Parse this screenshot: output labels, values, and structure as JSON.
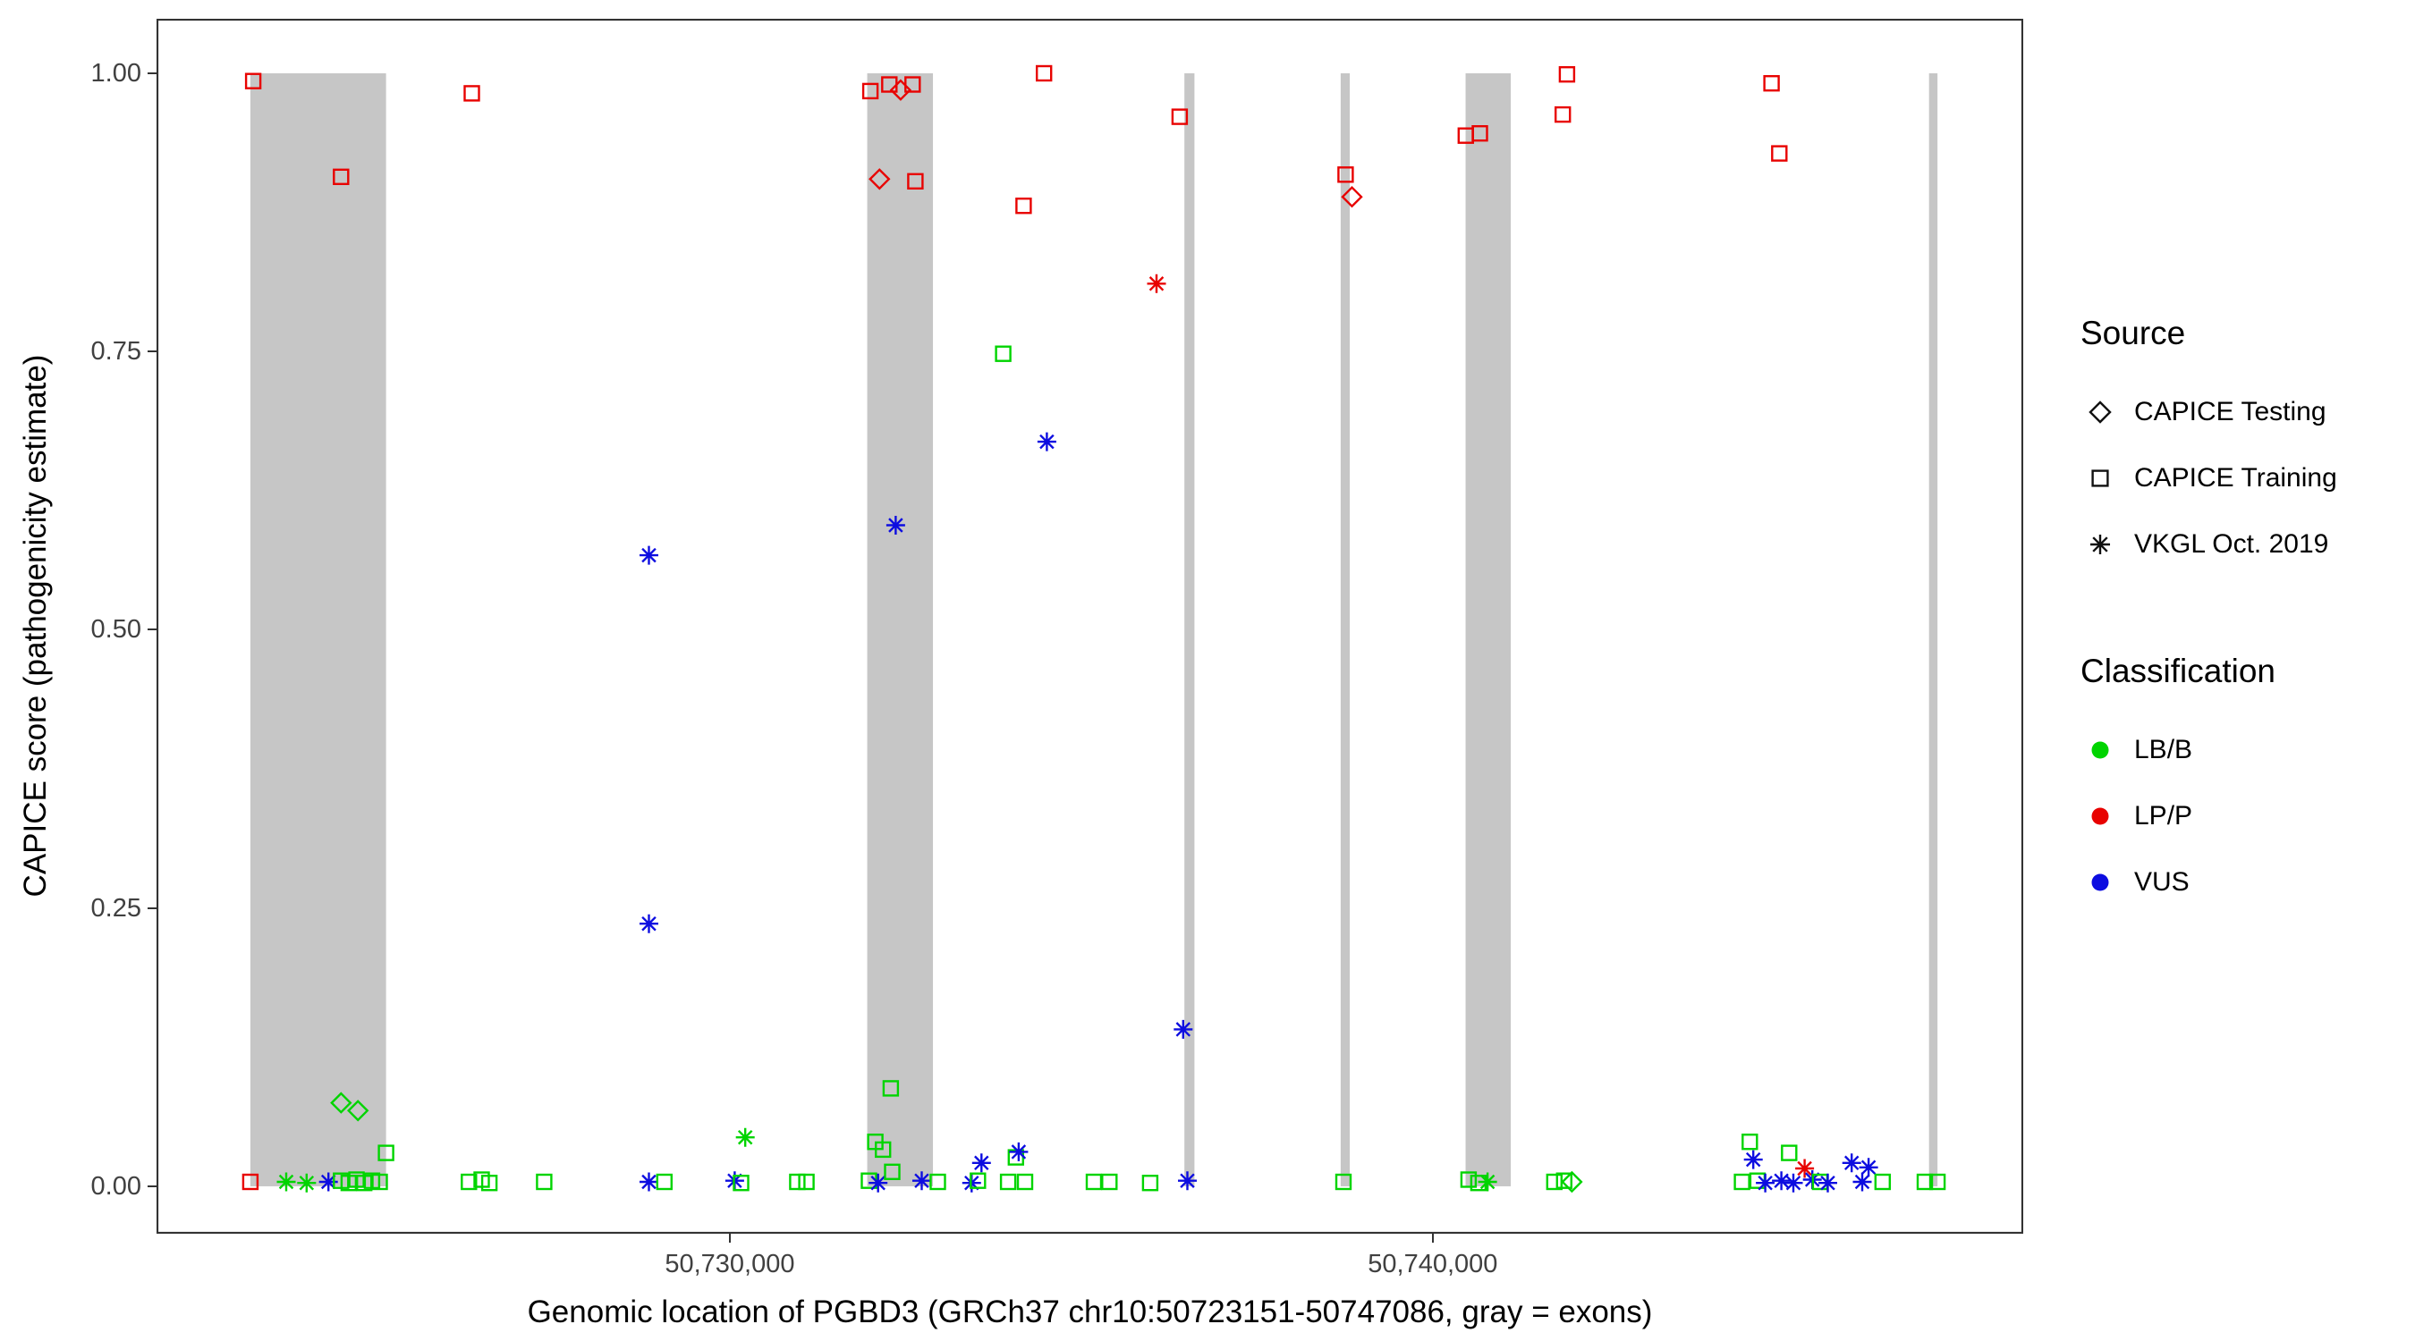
{
  "legend": {
    "source": {
      "title": "Source",
      "items": [
        {
          "label": "CAPICE Testing",
          "shape": "diamond"
        },
        {
          "label": "CAPICE Training",
          "shape": "square"
        },
        {
          "label": "VKGL Oct. 2019",
          "shape": "asterisk"
        }
      ]
    },
    "classification": {
      "title": "Classification",
      "items": [
        {
          "label": "LB/B",
          "color": "#00d400"
        },
        {
          "label": "LP/P",
          "color": "#e80200"
        },
        {
          "label": "VUS",
          "color": "#0d0de0"
        }
      ]
    }
  },
  "chart_data": {
    "type": "scatter",
    "title": "",
    "xlabel": "Genomic location of PGBD3 (GRCh37 chr10:50723151-50747086, gray = exons)",
    "ylabel": "CAPICE score (pathogenicity estimate)",
    "x_domain": [
      50721845,
      50748400
    ],
    "y_domain": [
      -0.0426,
      1.049
    ],
    "x_ticks": [
      {
        "value": 50730000,
        "label": "50,730,000"
      },
      {
        "value": 50740000,
        "label": "50,740,000"
      }
    ],
    "y_ticks": [
      {
        "value": 1.0,
        "label": "1.00"
      },
      {
        "value": 0.75,
        "label": "0.75"
      },
      {
        "value": 0.5,
        "label": "0.50"
      },
      {
        "value": 0.25,
        "label": "0.25"
      },
      {
        "value": 0.0,
        "label": "0.00"
      }
    ],
    "exon_color": "#c6c6c6",
    "exons": [
      [
        50723180,
        50725110
      ],
      [
        50731955,
        50732890
      ],
      [
        50736467,
        50736610
      ],
      [
        50738690,
        50738820
      ],
      [
        50740467,
        50741110
      ],
      [
        50747060,
        50747180
      ]
    ],
    "classification_codes": {
      "B": "LB/B",
      "P": "LP/P",
      "V": "VUS"
    },
    "source_codes": {
      "TE": "CAPICE Testing",
      "TR": "CAPICE Training",
      "VK": "VKGL Oct. 2019"
    },
    "class_colors": {
      "LB/B": "#00d400",
      "LP/P": "#e80200",
      "VUS": "#0d0de0"
    },
    "shape_map": {
      "CAPICE Testing": "diamond",
      "CAPICE Training": "square",
      "VKGL Oct. 2019": "asterisk"
    },
    "point_format": [
      "x_genomic",
      "capice_score",
      "classification_code",
      "source_code"
    ],
    "points": [
      [
        50723220,
        0.993,
        "P",
        "TR"
      ],
      [
        50724470,
        0.907,
        "P",
        "TR"
      ],
      [
        50726330,
        0.982,
        "P",
        "TR"
      ],
      [
        50732000,
        0.984,
        "P",
        "TR"
      ],
      [
        50732270,
        0.99,
        "P",
        "TR"
      ],
      [
        50732430,
        0.985,
        "P",
        "TE"
      ],
      [
        50732600,
        0.99,
        "P",
        "TR"
      ],
      [
        50732130,
        0.905,
        "P",
        "TE"
      ],
      [
        50732640,
        0.903,
        "P",
        "TR"
      ],
      [
        50734180,
        0.881,
        "P",
        "TR"
      ],
      [
        50734470,
        1.0,
        "P",
        "TR"
      ],
      [
        50736400,
        0.961,
        "P",
        "TR"
      ],
      [
        50736070,
        0.811,
        "P",
        "VK"
      ],
      [
        50738760,
        0.909,
        "P",
        "TR"
      ],
      [
        50738850,
        0.889,
        "P",
        "TE"
      ],
      [
        50740470,
        0.944,
        "P",
        "TR"
      ],
      [
        50740670,
        0.946,
        "P",
        "TR"
      ],
      [
        50741850,
        0.963,
        "P",
        "TR"
      ],
      [
        50741910,
        0.999,
        "P",
        "TR"
      ],
      [
        50744820,
        0.991,
        "P",
        "TR"
      ],
      [
        50744930,
        0.928,
        "P",
        "TR"
      ],
      [
        50733890,
        0.748,
        "B",
        "TR"
      ],
      [
        50734510,
        0.669,
        "V",
        "VK"
      ],
      [
        50732360,
        0.594,
        "V",
        "VK"
      ],
      [
        50728850,
        0.567,
        "V",
        "VK"
      ],
      [
        50728850,
        0.236,
        "V",
        "VK"
      ],
      [
        50736450,
        0.141,
        "V",
        "VK"
      ],
      [
        50724470,
        0.075,
        "B",
        "TE"
      ],
      [
        50724710,
        0.068,
        "B",
        "TE"
      ],
      [
        50732290,
        0.088,
        "B",
        "TR"
      ],
      [
        50730220,
        0.044,
        "B",
        "VK"
      ],
      [
        50732070,
        0.04,
        "B",
        "TR"
      ],
      [
        50732180,
        0.033,
        "B",
        "TR"
      ],
      [
        50725110,
        0.03,
        "B",
        "TR"
      ],
      [
        50734070,
        0.026,
        "B",
        "TR"
      ],
      [
        50733580,
        0.021,
        "V",
        "VK"
      ],
      [
        50734110,
        0.031,
        "V",
        "VK"
      ],
      [
        50744510,
        0.04,
        "B",
        "TR"
      ],
      [
        50745070,
        0.03,
        "B",
        "TR"
      ],
      [
        50744560,
        0.024,
        "V",
        "VK"
      ],
      [
        50745290,
        0.016,
        "P",
        "VK"
      ],
      [
        50745960,
        0.021,
        "V",
        "VK"
      ],
      [
        50746200,
        0.017,
        "V",
        "VK"
      ],
      [
        50723180,
        0.004,
        "P",
        "TR"
      ],
      [
        50723690,
        0.004,
        "B",
        "VK"
      ],
      [
        50723980,
        0.003,
        "B",
        "VK"
      ],
      [
        50724290,
        0.004,
        "V",
        "VK"
      ],
      [
        50724470,
        0.005,
        "B",
        "TR"
      ],
      [
        50724580,
        0.003,
        "B",
        "TR"
      ],
      [
        50724690,
        0.006,
        "B",
        "TR"
      ],
      [
        50724800,
        0.003,
        "B",
        "TR"
      ],
      [
        50724910,
        0.005,
        "B",
        "TR"
      ],
      [
        50725020,
        0.004,
        "B",
        "TR"
      ],
      [
        50726290,
        0.004,
        "B",
        "TR"
      ],
      [
        50726470,
        0.006,
        "B",
        "TR"
      ],
      [
        50726580,
        0.003,
        "B",
        "TR"
      ],
      [
        50727360,
        0.004,
        "B",
        "TR"
      ],
      [
        50728850,
        0.004,
        "V",
        "VK"
      ],
      [
        50729070,
        0.004,
        "B",
        "TR"
      ],
      [
        50730070,
        0.005,
        "V",
        "VK"
      ],
      [
        50730160,
        0.003,
        "B",
        "TR"
      ],
      [
        50730960,
        0.004,
        "B",
        "TR"
      ],
      [
        50731090,
        0.004,
        "B",
        "TR"
      ],
      [
        50731980,
        0.005,
        "B",
        "TR"
      ],
      [
        50732110,
        0.003,
        "V",
        "VK"
      ],
      [
        50732310,
        0.013,
        "B",
        "TR"
      ],
      [
        50732730,
        0.005,
        "V",
        "VK"
      ],
      [
        50732960,
        0.004,
        "B",
        "TR"
      ],
      [
        50733440,
        0.003,
        "V",
        "VK"
      ],
      [
        50733530,
        0.005,
        "B",
        "TR"
      ],
      [
        50733960,
        0.004,
        "B",
        "TR"
      ],
      [
        50734200,
        0.004,
        "B",
        "TR"
      ],
      [
        50735180,
        0.004,
        "B",
        "TR"
      ],
      [
        50735400,
        0.004,
        "B",
        "TR"
      ],
      [
        50735980,
        0.003,
        "B",
        "TR"
      ],
      [
        50736510,
        0.005,
        "V",
        "VK"
      ],
      [
        50738730,
        0.004,
        "B",
        "TR"
      ],
      [
        50740510,
        0.006,
        "B",
        "TR"
      ],
      [
        50740650,
        0.003,
        "B",
        "TR"
      ],
      [
        50740780,
        0.004,
        "B",
        "VK"
      ],
      [
        50741730,
        0.004,
        "B",
        "TR"
      ],
      [
        50741870,
        0.005,
        "B",
        "TR"
      ],
      [
        50741980,
        0.004,
        "B",
        "TE"
      ],
      [
        50744400,
        0.004,
        "B",
        "TR"
      ],
      [
        50744620,
        0.005,
        "B",
        "TR"
      ],
      [
        50744730,
        0.003,
        "V",
        "VK"
      ],
      [
        50744960,
        0.005,
        "V",
        "VK"
      ],
      [
        50745130,
        0.003,
        "V",
        "VK"
      ],
      [
        50745400,
        0.006,
        "V",
        "VK"
      ],
      [
        50745510,
        0.004,
        "B",
        "TR"
      ],
      [
        50745620,
        0.003,
        "V",
        "VK"
      ],
      [
        50746110,
        0.004,
        "V",
        "VK"
      ],
      [
        50746400,
        0.004,
        "B",
        "TR"
      ],
      [
        50747000,
        0.004,
        "B",
        "TR"
      ],
      [
        50747180,
        0.004,
        "B",
        "TR"
      ]
    ]
  }
}
